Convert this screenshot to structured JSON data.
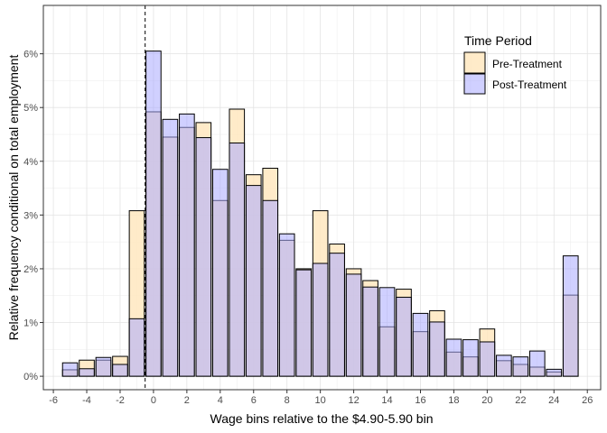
{
  "chart_data": {
    "type": "bar",
    "xlabel": "Wage bins relative to the $4.90-5.90 bin",
    "ylabel": "Relative frequency conditional on total employment",
    "xlim": [
      -6.6,
      26.8
    ],
    "ylim": [
      -0.25,
      6.9
    ],
    "x_ticks": [
      -6,
      -4,
      -2,
      0,
      2,
      4,
      6,
      8,
      10,
      12,
      14,
      16,
      18,
      20,
      22,
      24,
      26
    ],
    "x_tick_labels": [
      "-6",
      "-4",
      "-2",
      "0",
      "2",
      "4",
      "6",
      "8",
      "10",
      "12",
      "14",
      "16",
      "18",
      "20",
      "22",
      "24",
      "26"
    ],
    "y_ticks": [
      0,
      1,
      2,
      3,
      4,
      5,
      6
    ],
    "y_tick_labels": [
      "0%",
      "1%",
      "2%",
      "3%",
      "4%",
      "5%",
      "6%"
    ],
    "vline_x": -0.5,
    "grid": true,
    "legend": {
      "title": "Time Period",
      "position": "top-right",
      "entries": [
        "Pre-Treatment",
        "Post-Treatment"
      ]
    },
    "colors": {
      "pre_fill": "#ffe8c0",
      "post_fill": "#aaaaff",
      "outline": "#000000"
    },
    "x": [
      -5,
      -4,
      -3,
      -2,
      -1,
      0,
      1,
      2,
      3,
      4,
      5,
      6,
      7,
      8,
      9,
      10,
      11,
      12,
      13,
      14,
      15,
      16,
      17,
      18,
      19,
      20,
      21,
      22,
      23,
      24,
      25
    ],
    "series": [
      {
        "name": "Pre-Treatment",
        "values": [
          0.12,
          0.3,
          0.3,
          0.37,
          3.08,
          4.92,
          4.45,
          4.63,
          4.72,
          3.27,
          4.97,
          3.75,
          3.87,
          2.53,
          2.0,
          3.08,
          2.46,
          2.0,
          1.78,
          0.92,
          1.62,
          0.83,
          1.22,
          0.45,
          0.36,
          0.88,
          0.29,
          0.22,
          0.17,
          0.08,
          1.51
        ]
      },
      {
        "name": "Post-Treatment",
        "values": [
          0.25,
          0.14,
          0.35,
          0.22,
          1.07,
          6.05,
          4.78,
          4.88,
          4.44,
          3.85,
          4.34,
          3.55,
          3.27,
          2.65,
          1.98,
          2.1,
          2.29,
          1.9,
          1.66,
          1.65,
          1.47,
          1.17,
          1.01,
          0.69,
          0.68,
          0.64,
          0.39,
          0.36,
          0.47,
          0.13,
          2.24
        ]
      }
    ]
  }
}
